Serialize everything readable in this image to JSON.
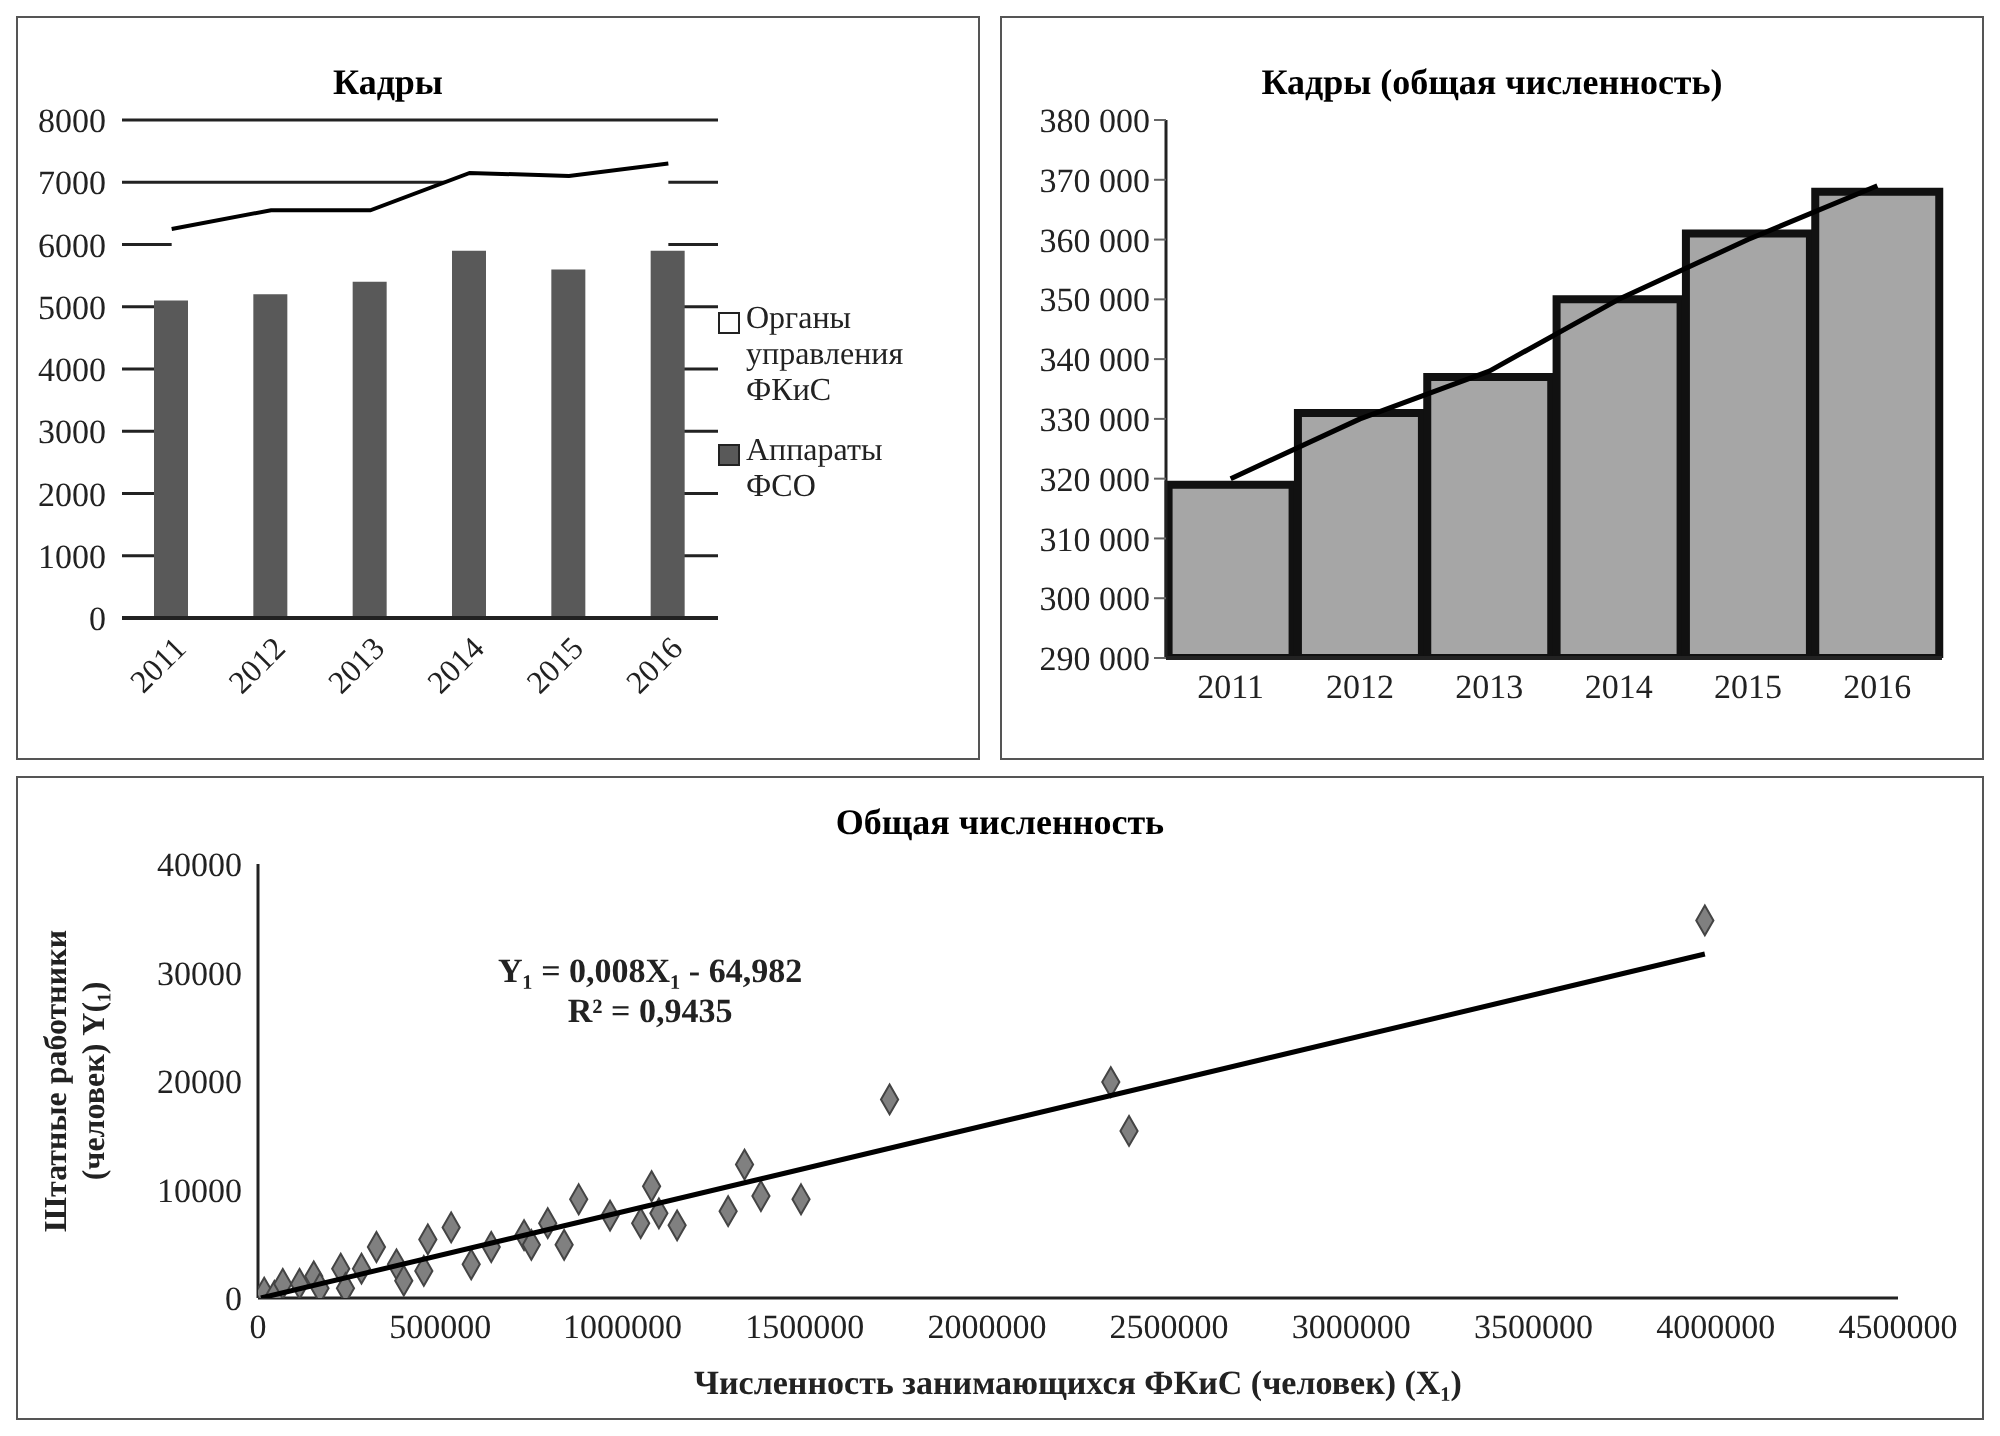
{
  "chart_data": [
    {
      "type": "bar",
      "title": "Кадры",
      "categories": [
        "2011",
        "2012",
        "2013",
        "2014",
        "2015",
        "2016"
      ],
      "series": [
        {
          "name": "Органы управления ФКиС",
          "type": "area",
          "color": "#ffffff",
          "values": [
            6250,
            6550,
            6550,
            7150,
            7100,
            7300
          ]
        },
        {
          "name": "Аппараты ФСО",
          "type": "bar",
          "color": "#595959",
          "values": [
            5100,
            5200,
            5400,
            5900,
            5600,
            5900
          ]
        }
      ],
      "ylim": [
        0,
        8000
      ],
      "yticks": [
        0,
        1000,
        2000,
        3000,
        4000,
        5000,
        6000,
        7000,
        8000
      ],
      "grid": "y",
      "legend": "right"
    },
    {
      "type": "bar",
      "title": "Кадры (общая численность)",
      "categories": [
        "2011",
        "2012",
        "2013",
        "2014",
        "2015",
        "2016"
      ],
      "series": [
        {
          "type": "bar",
          "color": "#a6a6a6",
          "values": [
            319000,
            331000,
            337000,
            350000,
            361000,
            368000
          ]
        },
        {
          "type": "line",
          "color": "#000000",
          "values": [
            320000,
            330000,
            338000,
            350000,
            360000,
            369000
          ]
        }
      ],
      "ylim": [
        290000,
        380000
      ],
      "yticks": [
        {
          "value": 290000,
          "label": "290 000"
        },
        {
          "value": 300000,
          "label": "300 000"
        },
        {
          "value": 310000,
          "label": "310 000"
        },
        {
          "value": 320000,
          "label": "320 000"
        },
        {
          "value": 330000,
          "label": "330 000"
        },
        {
          "value": 340000,
          "label": "340 000"
        },
        {
          "value": 350000,
          "label": "350 000"
        },
        {
          "value": 360000,
          "label": "360 000"
        },
        {
          "value": 370000,
          "label": "370 000"
        },
        {
          "value": 380000,
          "label": "380 000"
        }
      ]
    },
    {
      "type": "scatter",
      "title": "Общая численность",
      "xlabel": "Численность занимающихся ФКиС (человек) (X₁)",
      "ylabel": "Штатные работники (человек) Y(₁)",
      "series": [
        {
          "type": "scatter",
          "color": "#808080",
          "x": [
            17000,
            45000,
            68000,
            114000,
            153000,
            170000,
            227000,
            240000,
            284000,
            325000,
            380000,
            400000,
            455000,
            466000,
            530000,
            585000,
            640000,
            730000,
            750000,
            795000,
            840000,
            880000,
            966000,
            1050000,
            1080000,
            1100000,
            1150000,
            1290000,
            1335000,
            1380000,
            1490000,
            1733000,
            2340000,
            2390000,
            3970000
          ],
          "values": [
            500,
            200,
            1300,
            1300,
            2000,
            900,
            2700,
            900,
            2700,
            4700,
            3100,
            1600,
            2500,
            5400,
            6500,
            3100,
            4700,
            5800,
            4900,
            6900,
            4900,
            9100,
            7600,
            6900,
            10300,
            7800,
            6700,
            8000,
            12300,
            9400,
            9100,
            18300,
            19900,
            15400,
            34800
          ]
        },
        {
          "type": "line",
          "color": "#000000",
          "marker": "none",
          "x": [
            8000,
            3970000
          ],
          "values": [
            0,
            31700
          ]
        }
      ],
      "xlim": [
        0,
        4500000
      ],
      "xticks": [
        0,
        500000,
        1000000,
        1500000,
        2000000,
        2500000,
        3000000,
        3500000,
        4000000,
        4500000
      ],
      "ylim": [
        0,
        40000
      ],
      "yticks": [
        0,
        10000,
        20000,
        30000,
        40000
      ],
      "marker": "diamond",
      "annotations": [
        "Y₁ = 0,008X₁ - 64,982",
        "R² = 0,9435"
      ]
    }
  ]
}
